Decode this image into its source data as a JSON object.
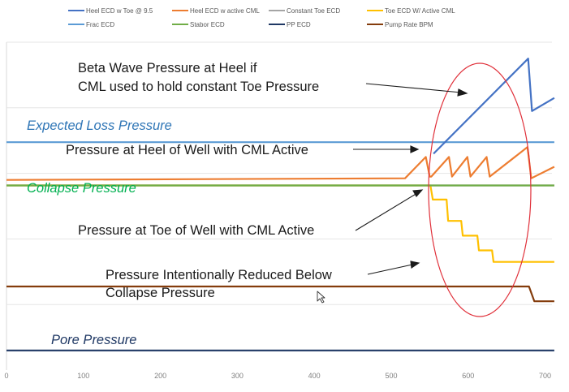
{
  "chart_data": {
    "type": "line",
    "title": "",
    "xlabel": "",
    "ylabel": "",
    "xlim": [
      0,
      730
    ],
    "ylim": [
      0,
      100
    ],
    "grid": "horizontal",
    "legend_position": "top",
    "x_ticks": [
      "0",
      "100",
      "200",
      "300",
      "400",
      "500",
      "600",
      "700"
    ],
    "x_tick_values": [
      0,
      100,
      200,
      300,
      400,
      500,
      600,
      700
    ],
    "legend": [
      {
        "label": "Heel ECD w Toe @ 9.5",
        "color": "#4472c4"
      },
      {
        "label": "Heel ECD w active CML",
        "color": "#ed7d31"
      },
      {
        "label": "Constant Toe ECD",
        "color": "#a5a5a5"
      },
      {
        "label": "Toe ECD W/ Active CML",
        "color": "#ffc000"
      },
      {
        "label": "Frac ECD",
        "color": "#5b9bd5"
      },
      {
        "label": "Stabor ECD",
        "color": "#70ad47"
      },
      {
        "label": "PP ECD",
        "color": "#1f3864"
      },
      {
        "label": "Pump Rate BPM",
        "color": "#843c0c"
      }
    ],
    "series": [
      {
        "name": "Heel ECD w Toe @ 9.5",
        "color": "#4472c4",
        "x": [
          555,
          678,
          683,
          712
        ],
        "y": [
          66,
          95,
          79,
          83
        ]
      },
      {
        "name": "Heel ECD w active CML",
        "color": "#ed7d31",
        "x": [
          0,
          518,
          545,
          550,
          552,
          575,
          579,
          599,
          603,
          624,
          628,
          677,
          682,
          712
        ],
        "y": [
          58,
          58.5,
          65,
          59,
          59,
          65,
          59,
          65,
          59,
          65,
          59,
          68,
          58.5,
          62
        ]
      },
      {
        "name": "Constant Toe ECD",
        "color": "#a5a5a5",
        "x": [
          0,
          712
        ],
        "y": [
          56.3,
          56.3
        ]
      },
      {
        "name": "Toe ECD W/ Active CML",
        "color": "#ffc000",
        "x": [
          0,
          551,
          554,
          572,
          574,
          591,
          593,
          612,
          614,
          631,
          633,
          712
        ],
        "y": [
          56.3,
          56.3,
          52,
          52,
          45.5,
          45.5,
          41,
          41,
          36.5,
          36.5,
          33,
          33
        ]
      },
      {
        "name": "Frac ECD",
        "color": "#5b9bd5",
        "x": [
          0,
          712
        ],
        "y": [
          69.5,
          69.5
        ]
      },
      {
        "name": "Stabor ECD",
        "color": "#70ad47",
        "x": [
          0,
          712
        ],
        "y": [
          56.3,
          56.3
        ]
      },
      {
        "name": "PP ECD",
        "color": "#1f3864",
        "x": [
          0,
          712
        ],
        "y": [
          6,
          6
        ]
      },
      {
        "name": "Pump Rate BPM",
        "color": "#843c0c",
        "x": [
          0,
          677,
          679,
          686,
          688,
          712
        ],
        "y": [
          25.5,
          25.5,
          25.5,
          21,
          21,
          21
        ]
      }
    ],
    "annotations": [
      {
        "text": "Beta Wave Pressure at Heel if",
        "color": "#1a1a1a"
      },
      {
        "text": "CML used to hold constant Toe Pressure",
        "color": "#1a1a1a"
      },
      {
        "text": "Expected Loss Pressure",
        "color": "#2e75b6"
      },
      {
        "text": "Pressure at Heel of Well with CML Active",
        "color": "#1a1a1a"
      },
      {
        "text": "Collapse Pressure",
        "color": "#00b050"
      },
      {
        "text": "Pressure at Toe of Well with CML Active",
        "color": "#1a1a1a"
      },
      {
        "text": "Pressure Intentionally Reduced Below",
        "color": "#1a1a1a"
      },
      {
        "text": "Collapse Pressure",
        "color": "#1a1a1a"
      },
      {
        "text": "Pore Pressure",
        "color": "#1f3864"
      }
    ],
    "highlight_ellipse": {
      "center": [
        600,
        64
      ],
      "radius": [
        70,
        39
      ],
      "color": "#e0303a"
    }
  }
}
